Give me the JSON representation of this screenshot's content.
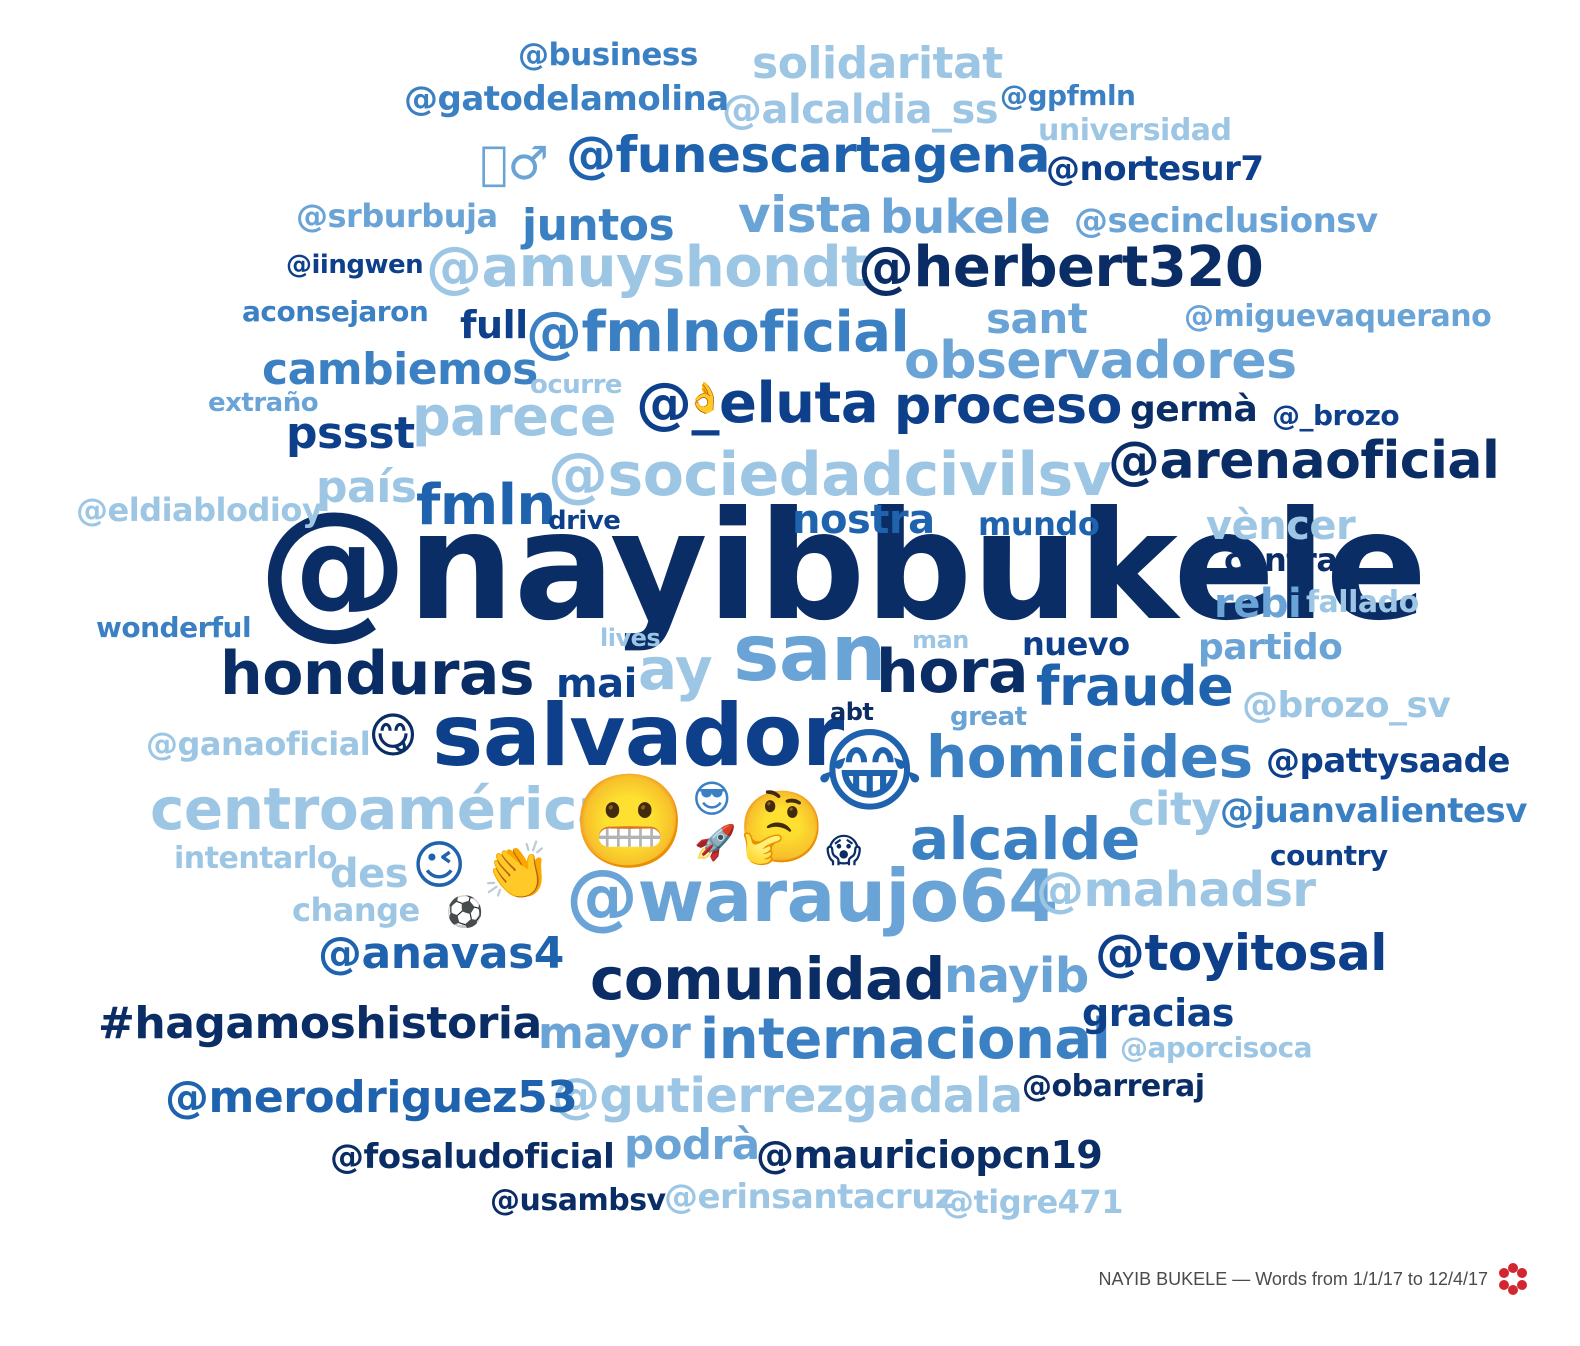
{
  "colors": {
    "c0": "#0b2d66",
    "c1": "#0d3f8a",
    "c2": "#1f63ae",
    "c3": "#3c80c4",
    "c4": "#6aa3d5",
    "c5": "#9cc6e4"
  },
  "words": [
    {
      "text": "@nayibbukele",
      "color": "c0"
    },
    {
      "text": "salvador",
      "color": "c1"
    },
    {
      "text": "san",
      "color": "c4"
    },
    {
      "text": "@waraujo64",
      "color": "c4"
    },
    {
      "text": "@sociedadcivilsv",
      "color": "c5"
    },
    {
      "text": "@amuyshondt",
      "color": "c5"
    },
    {
      "text": "@fmlnoficial",
      "color": "c3"
    },
    {
      "text": "@funescartagena",
      "color": "c2"
    },
    {
      "text": "@herbert320",
      "color": "c0"
    },
    {
      "text": "@_eluta",
      "color": "c1"
    },
    {
      "text": "@arenaoficial",
      "color": "c0"
    },
    {
      "text": "observadores",
      "color": "c4"
    },
    {
      "text": "proceso",
      "color": "c1"
    },
    {
      "text": "honduras",
      "color": "c0"
    },
    {
      "text": "centroamérica",
      "color": "c5"
    },
    {
      "text": "homicides",
      "color": "c3"
    },
    {
      "text": "alcalde",
      "color": "c3"
    },
    {
      "text": "hora",
      "color": "c0"
    },
    {
      "text": "fraude",
      "color": "c2"
    },
    {
      "text": "comunidad",
      "color": "c0"
    },
    {
      "text": "internacional",
      "color": "c3"
    },
    {
      "text": "@gutierrezgadala",
      "color": "c5"
    },
    {
      "text": "@merodriguez53",
      "color": "c2"
    },
    {
      "text": "#hagamoshistoria",
      "color": "c0"
    },
    {
      "text": "@toyitosal",
      "color": "c1"
    },
    {
      "text": "@mahadsr",
      "color": "c5"
    },
    {
      "text": "nayib",
      "color": "c4"
    },
    {
      "text": "@anavas4",
      "color": "c2"
    },
    {
      "text": "mayor",
      "color": "c4"
    },
    {
      "text": "vista",
      "color": "c4"
    },
    {
      "text": "bukele",
      "color": "c4"
    },
    {
      "text": "juntos",
      "color": "c3"
    },
    {
      "text": "parece",
      "color": "c5"
    },
    {
      "text": "fmln",
      "color": "c2"
    },
    {
      "text": "nostra",
      "color": "c2"
    },
    {
      "text": "pssst",
      "color": "c1"
    },
    {
      "text": "cambiemos",
      "color": "c3"
    },
    {
      "text": "solidaritat",
      "color": "c5"
    },
    {
      "text": "@alcaldia_ss",
      "color": "c5"
    },
    {
      "text": "@gatodelamolina",
      "color": "c3"
    },
    {
      "text": "@business",
      "color": "c3"
    },
    {
      "text": "@gpfmln",
      "color": "c3"
    },
    {
      "text": "universidad",
      "color": "c5"
    },
    {
      "text": "@nortesur7",
      "color": "c1"
    },
    {
      "text": "@secinclusionsv",
      "color": "c4"
    },
    {
      "text": "@srburbuja",
      "color": "c4"
    },
    {
      "text": "@iingwen",
      "color": "c1"
    },
    {
      "text": "aconsejaron",
      "color": "c3"
    },
    {
      "text": "full",
      "color": "c1"
    },
    {
      "text": "sant",
      "color": "c4"
    },
    {
      "text": "@miguevaquerano",
      "color": "c4"
    },
    {
      "text": "ocurre",
      "color": "c5"
    },
    {
      "text": "extraño",
      "color": "c4"
    },
    {
      "text": "germà",
      "color": "c0"
    },
    {
      "text": "@_brozo",
      "color": "c1"
    },
    {
      "text": "país",
      "color": "c5"
    },
    {
      "text": "@eldiablodioy",
      "color": "c5"
    },
    {
      "text": "drive",
      "color": "c1"
    },
    {
      "text": "mundo",
      "color": "c2"
    },
    {
      "text": "vèncer",
      "color": "c5"
    },
    {
      "text": "contra",
      "color": "c0"
    },
    {
      "text": "rebi",
      "color": "c4"
    },
    {
      "text": "fallado",
      "color": "c5"
    },
    {
      "text": "wonderful",
      "color": "c3"
    },
    {
      "text": "lives",
      "color": "c5"
    },
    {
      "text": "man",
      "color": "c5"
    },
    {
      "text": "nuevo",
      "color": "c1"
    },
    {
      "text": "partido",
      "color": "c4"
    },
    {
      "text": "ay",
      "color": "c5"
    },
    {
      "text": "mai",
      "color": "c1"
    },
    {
      "text": "abt",
      "color": "c0"
    },
    {
      "text": "great",
      "color": "c4"
    },
    {
      "text": "@brozo_sv",
      "color": "c5"
    },
    {
      "text": "@ganaoficial",
      "color": "c5"
    },
    {
      "text": "@pattysaade",
      "color": "c1"
    },
    {
      "text": "city",
      "color": "c5"
    },
    {
      "text": "@juanvalientesv",
      "color": "c3"
    },
    {
      "text": "country",
      "color": "c1"
    },
    {
      "text": "intentarlo",
      "color": "c5"
    },
    {
      "text": "des",
      "color": "c5"
    },
    {
      "text": "change",
      "color": "c5"
    },
    {
      "text": "gracias",
      "color": "c1"
    },
    {
      "text": "@aporcisoca",
      "color": "c5"
    },
    {
      "text": "@obarreraj",
      "color": "c0"
    },
    {
      "text": "podrà",
      "color": "c4"
    },
    {
      "text": "@fosaludoficial",
      "color": "c0"
    },
    {
      "text": "@mauriciopcn19",
      "color": "c0"
    },
    {
      "text": "@usambsv",
      "color": "c0"
    },
    {
      "text": "@erinsantacruz",
      "color": "c5"
    },
    {
      "text": "@tigre471",
      "color": "c5"
    }
  ],
  "emojis": [
    {
      "icon": "man-gesture-icon",
      "text": "􀀀♂"
    },
    {
      "icon": "face-savoring-food-icon",
      "text": "😋"
    },
    {
      "icon": "grimacing-face-icon",
      "text": "😬"
    },
    {
      "icon": "face-with-tears-of-joy-icon",
      "text": "😂"
    },
    {
      "icon": "smiling-face-with-sunglasses-icon",
      "text": "😎"
    },
    {
      "icon": "thinking-face-icon",
      "text": "🤔"
    },
    {
      "icon": "rocket-icon",
      "text": "🚀"
    },
    {
      "icon": "face-screaming-in-fear-icon",
      "text": "😱"
    },
    {
      "icon": "winking-face-icon",
      "text": "😉"
    },
    {
      "icon": "clapping-hands-icon",
      "text": "👏"
    },
    {
      "icon": "soccer-ball-icon",
      "text": "⚽"
    },
    {
      "icon": "ok-hand-icon",
      "text": "👌"
    }
  ],
  "footer": {
    "caption": "NAYIB BUKELE — Words from 1/1/17 to 12/4/17"
  }
}
